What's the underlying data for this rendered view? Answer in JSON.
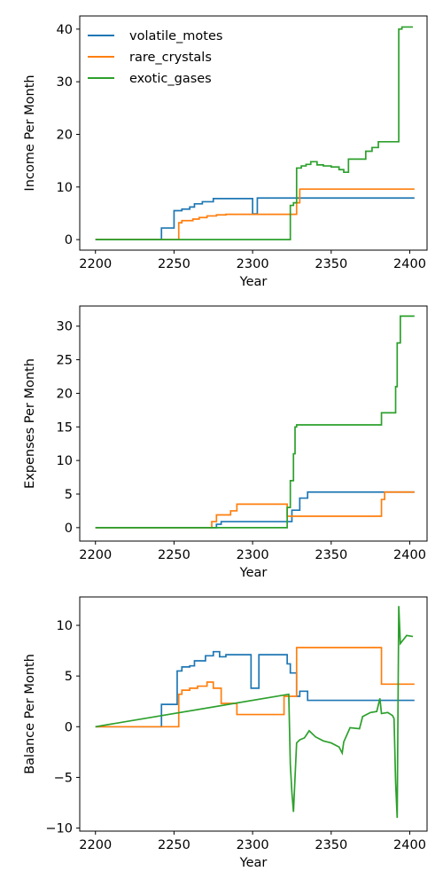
{
  "chart_data": [
    {
      "type": "line",
      "xlabel": "Year",
      "ylabel": "Income Per Month",
      "xlim": [
        2190,
        2411
      ],
      "ylim": [
        -2,
        42.5
      ],
      "xticks": [
        2200,
        2250,
        2300,
        2350,
        2400
      ],
      "yticks": [
        0,
        10,
        20,
        30,
        40
      ],
      "legend": "top-left",
      "grid": false,
      "series": [
        {
          "name": "volatile_motes",
          "color": "#1f77b4",
          "step": true,
          "x": [
            2200,
            2242,
            2248,
            2250,
            2255,
            2260,
            2263,
            2268,
            2275,
            2300,
            2303,
            2403
          ],
          "y": [
            0,
            2.2,
            2.2,
            5.5,
            5.8,
            6.2,
            6.8,
            7.2,
            7.8,
            4.9,
            7.9,
            7.9
          ]
        },
        {
          "name": "rare_crystals",
          "color": "#ff7f0e",
          "step": true,
          "x": [
            2200,
            2253,
            2255,
            2262,
            2266,
            2271,
            2277,
            2283,
            2327,
            2328,
            2330,
            2403
          ],
          "y": [
            0,
            3.2,
            3.6,
            3.9,
            4.2,
            4.5,
            4.7,
            4.8,
            4.8,
            7.0,
            9.6,
            9.6
          ]
        },
        {
          "name": "exotic_gases",
          "color": "#2ca02c",
          "step": true,
          "x": [
            2200,
            2324,
            2326,
            2328,
            2331,
            2334,
            2337,
            2341,
            2345,
            2350,
            2355,
            2358,
            2361,
            2367,
            2372,
            2376,
            2380,
            2393,
            2395,
            2402
          ],
          "y": [
            0,
            6.5,
            7.0,
            13.6,
            14.0,
            14.3,
            14.8,
            14.2,
            14.0,
            13.8,
            13.3,
            12.8,
            15.3,
            15.3,
            16.8,
            17.5,
            18.6,
            40.0,
            40.4,
            40.4
          ]
        }
      ]
    },
    {
      "type": "line",
      "xlabel": "Year",
      "ylabel": "Expenses Per Month",
      "xlim": [
        2190,
        2411
      ],
      "ylim": [
        -2,
        33
      ],
      "xticks": [
        2200,
        2250,
        2300,
        2350,
        2400
      ],
      "yticks": [
        0,
        5,
        10,
        15,
        20,
        25,
        30
      ],
      "grid": false,
      "series": [
        {
          "name": "volatile_motes",
          "color": "#1f77b4",
          "step": true,
          "x": [
            2200,
            2277,
            2280,
            2322,
            2325,
            2328,
            2330,
            2335,
            2403
          ],
          "y": [
            0,
            0.5,
            0.9,
            0.9,
            2.6,
            2.6,
            4.4,
            5.3,
            5.3
          ]
        },
        {
          "name": "rare_crystals",
          "color": "#ff7f0e",
          "step": true,
          "x": [
            2200,
            2274,
            2277,
            2280,
            2286,
            2290,
            2319,
            2322,
            2380,
            2382,
            2384,
            2403
          ],
          "y": [
            0,
            0.9,
            1.9,
            1.9,
            2.5,
            3.5,
            3.5,
            1.7,
            1.7,
            4.2,
            5.3,
            5.3
          ]
        },
        {
          "name": "exotic_gases",
          "color": "#2ca02c",
          "step": true,
          "x": [
            2200,
            2322,
            2324,
            2326,
            2327,
            2328,
            2381,
            2382,
            2390,
            2391,
            2392,
            2394,
            2403
          ],
          "y": [
            0,
            3.0,
            7.0,
            11.0,
            15.0,
            15.3,
            15.3,
            17.1,
            17.1,
            21.0,
            27.5,
            31.5,
            31.5
          ]
        }
      ]
    },
    {
      "type": "line",
      "xlabel": "Year",
      "ylabel": "Balance Per Month",
      "xlim": [
        2190,
        2411
      ],
      "ylim": [
        -10.3,
        12.8
      ],
      "xticks": [
        2200,
        2250,
        2300,
        2350,
        2400
      ],
      "yticks": [
        -10,
        -5,
        0,
        5,
        10
      ],
      "grid": false,
      "series": [
        {
          "name": "volatile_motes",
          "color": "#1f77b4",
          "step": true,
          "x": [
            2200,
            2242,
            2250,
            2252,
            2255,
            2260,
            2263,
            2270,
            2275,
            2279,
            2283,
            2299,
            2304,
            2322,
            2324,
            2328,
            2330,
            2335,
            2403
          ],
          "y": [
            0,
            2.2,
            2.2,
            5.5,
            5.9,
            6.0,
            6.5,
            7.0,
            7.4,
            6.9,
            7.1,
            3.8,
            7.1,
            6.2,
            5.3,
            3.0,
            3.5,
            2.6,
            2.6
          ]
        },
        {
          "name": "rare_crystals",
          "color": "#ff7f0e",
          "step": true,
          "x": [
            2200,
            2253,
            2255,
            2260,
            2265,
            2271,
            2275,
            2280,
            2285,
            2290,
            2303,
            2307,
            2320,
            2323,
            2327,
            2328,
            2381,
            2382,
            2403
          ],
          "y": [
            0,
            3.2,
            3.6,
            3.8,
            4.0,
            4.4,
            3.8,
            2.3,
            2.3,
            1.2,
            1.2,
            1.2,
            3.0,
            3.0,
            3.0,
            7.8,
            7.8,
            4.2,
            4.2
          ]
        },
        {
          "name": "exotic_gases",
          "color": "#2ca02c",
          "step": false,
          "x": [
            2200,
            2323,
            2324,
            2325,
            2326,
            2327,
            2328,
            2330,
            2333,
            2336,
            2340,
            2345,
            2350,
            2355,
            2357,
            2358,
            2362,
            2368,
            2370,
            2375,
            2379,
            2381,
            2382,
            2386,
            2389,
            2390,
            2391,
            2392,
            2393,
            2394,
            2396,
            2398,
            2402
          ],
          "y": [
            0,
            3.2,
            -3.7,
            -6.5,
            -8.4,
            -5.0,
            -1.6,
            -1.3,
            -1.1,
            -0.4,
            -1.0,
            -1.4,
            -1.6,
            -2.0,
            -2.6,
            -1.5,
            -0.1,
            -0.2,
            1.0,
            1.4,
            1.5,
            2.8,
            1.3,
            1.4,
            1.1,
            0.8,
            -5.5,
            -9.0,
            11.9,
            8.2,
            8.6,
            9.0,
            8.9
          ]
        }
      ]
    }
  ]
}
